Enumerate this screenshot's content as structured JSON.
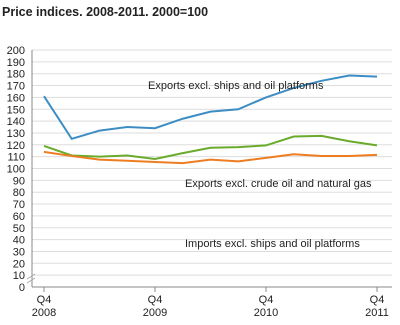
{
  "chart_data": {
    "type": "line",
    "title": "Price indices. 2008-2011. 2000=100",
    "categories": [
      "Q4 2008",
      null,
      null,
      null,
      "Q4 2009",
      null,
      null,
      null,
      "Q4 2010",
      null,
      null,
      null,
      "Q4 2011"
    ],
    "series": [
      {
        "name": "Exports excl. ships and oil platforms",
        "color": "#3d8dc5",
        "values": [
          161,
          125,
          132,
          135,
          134,
          142,
          148,
          150,
          160,
          168,
          174,
          178.5,
          177.5
        ]
      },
      {
        "name": "Exports excl. crude oil and natural gas",
        "color": "#6aab2c",
        "values": [
          119,
          111,
          110,
          111,
          108,
          113,
          117.5,
          118,
          119.5,
          127,
          127.5,
          123,
          119.5
        ]
      },
      {
        "name": "Imports excl. ships and oil platforms",
        "color": "#ee7d22",
        "values": [
          114,
          110.5,
          107.5,
          106.5,
          105.5,
          104.5,
          107.5,
          106,
          109,
          112,
          110.5,
          110.5,
          111.5
        ]
      }
    ],
    "ylim": [
      0,
      200
    ],
    "yticks": [
      0,
      10,
      20,
      30,
      40,
      50,
      60,
      70,
      80,
      90,
      100,
      110,
      120,
      130,
      140,
      150,
      160,
      170,
      180,
      190,
      200
    ],
    "grid": true
  }
}
